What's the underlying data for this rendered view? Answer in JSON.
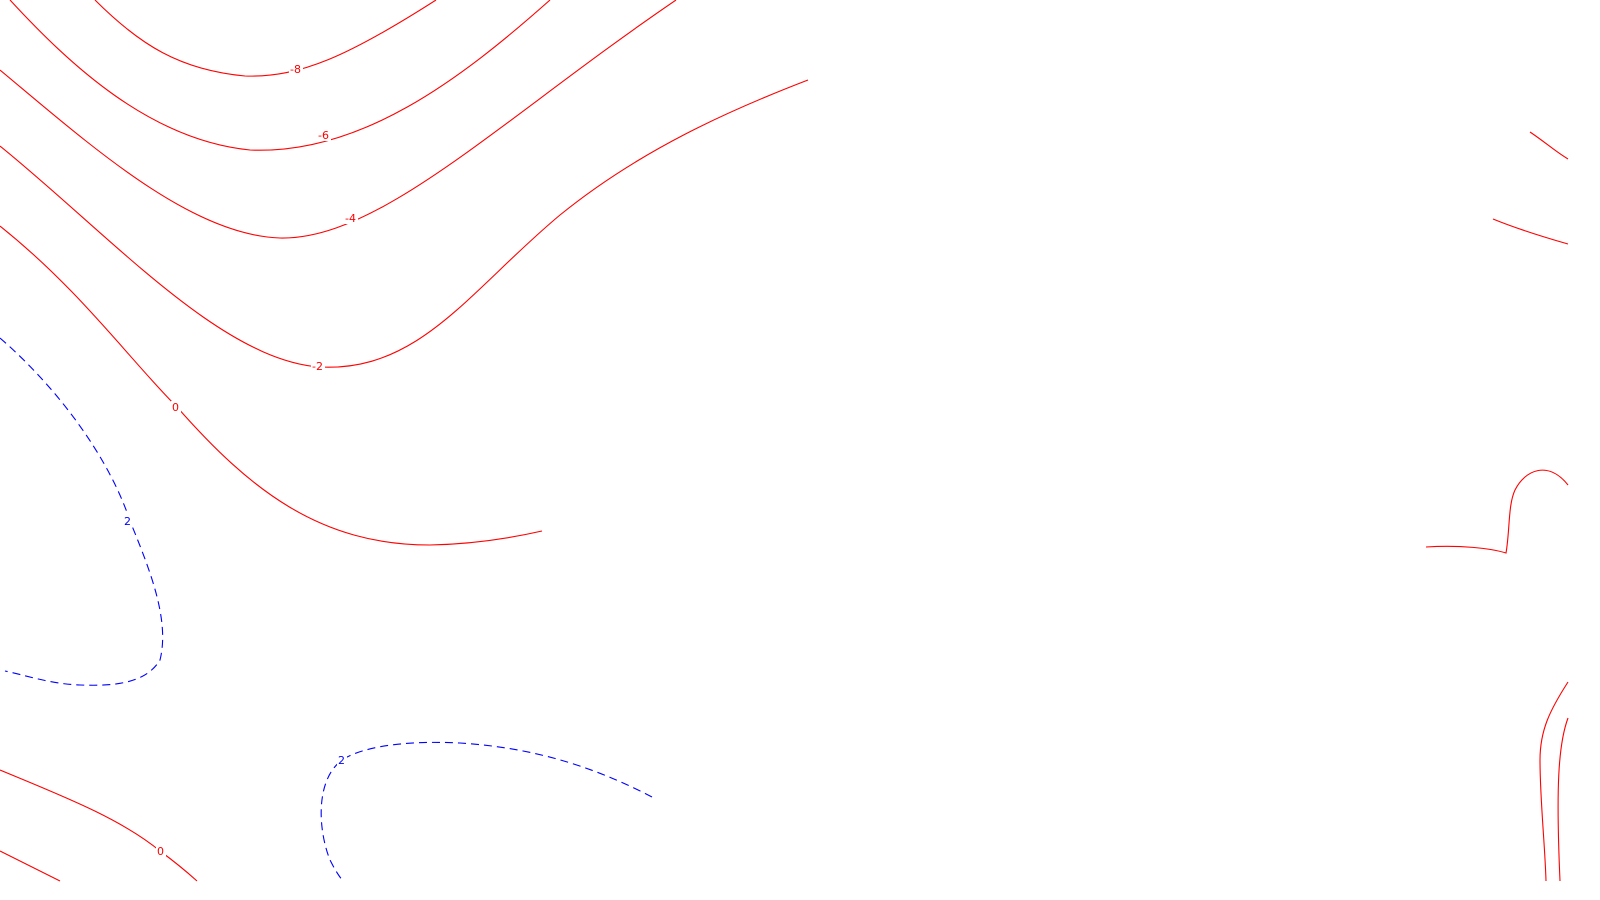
{
  "colors": {
    "negative_contours": "#ff0000",
    "positive_contours": "#0000ff",
    "background": "#ffffff"
  },
  "legend_style": {
    "positive_line": "dashed",
    "non_positive_line": "solid"
  },
  "contour_labels": {
    "l_neg8": "-8",
    "l_neg6": "-6",
    "l_neg4": "-4",
    "l_neg2": "-2",
    "l_zero_upper": "0",
    "l_zero_lower": "0",
    "l_pos2_left": "2",
    "l_pos2_bottom": "2"
  }
}
